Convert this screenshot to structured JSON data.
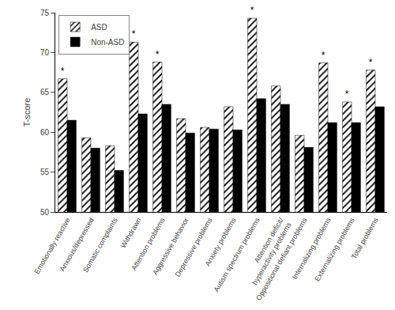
{
  "chart_data": {
    "type": "bar",
    "categories": [
      "Emotionally reactive",
      "Anxious/depressed",
      "Somatic complaints",
      "Withdrawn",
      "Attention problems",
      "Aggressive behavior",
      "Depressive problems",
      "Anxiety problems",
      "Autism spectrum problems",
      "Attention deficit/\nhyperactivity problems",
      "Oppositional defiant problems",
      "Internalizing problems",
      "Externalizing problems",
      "Total problems"
    ],
    "series": [
      {
        "name": "ASD",
        "color": "white",
        "values": [
          66.7,
          59.3,
          58.3,
          71.3,
          68.8,
          61.7,
          60.6,
          63.2,
          74.3,
          65.8,
          59.6,
          68.7,
          63.8,
          67.8
        ]
      },
      {
        "name": "Non-ASD",
        "color": "black",
        "values": [
          61.5,
          58.0,
          55.2,
          62.3,
          63.5,
          59.9,
          60.4,
          60.3,
          64.2,
          63.5,
          58.1,
          61.2,
          61.2,
          63.2
        ]
      }
    ],
    "annotations": [
      {
        "text": "*",
        "series": "ASD",
        "category": "Emotionally reactive"
      },
      {
        "text": "*",
        "series": "ASD",
        "category": "Withdrawn"
      },
      {
        "text": "*",
        "series": "ASD",
        "category": "Attention problems"
      },
      {
        "text": "*",
        "series": "ASD",
        "category": "Autism spectrum problems"
      },
      {
        "text": "*",
        "series": "ASD",
        "category": "Internalizing problems"
      },
      {
        "text": "*",
        "series": "ASD",
        "category": "Externalizing problems"
      },
      {
        "text": "*",
        "series": "ASD",
        "category": "Total problems"
      }
    ],
    "ylabel": "T-score",
    "ylim": [
      50,
      75
    ],
    "yticks": [
      50,
      55,
      60,
      65,
      70,
      75
    ],
    "legend": "upper left",
    "grid": false
  }
}
